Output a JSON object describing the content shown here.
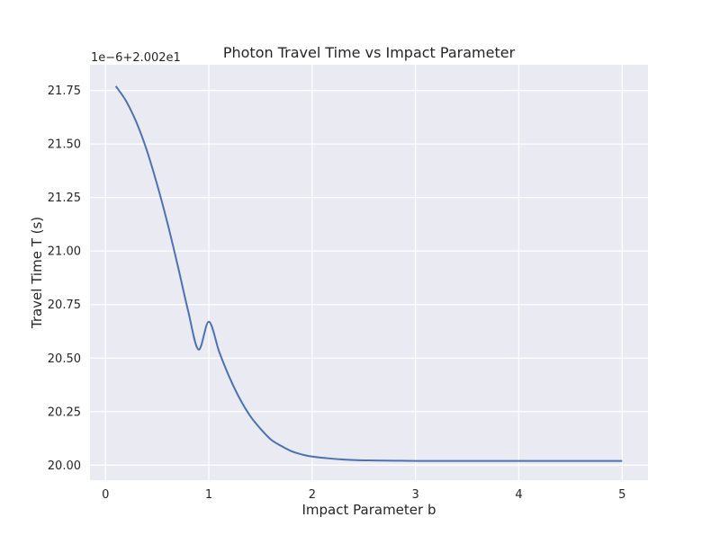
{
  "chart_data": {
    "type": "line",
    "title": "Photon Travel Time vs Impact Parameter",
    "xlabel": "Impact Parameter b",
    "ylabel": "Travel Time T (s)",
    "y_offset_label": "1e−6+2.002e1",
    "xlim": [
      -0.15,
      5.25
    ],
    "ylim": [
      19.93,
      21.87
    ],
    "x_ticks": [
      0,
      1,
      2,
      3,
      4,
      5
    ],
    "x_tick_labels": [
      "0",
      "1",
      "2",
      "3",
      "4",
      "5"
    ],
    "y_ticks": [
      20.0,
      20.25,
      20.5,
      20.75,
      21.0,
      21.25,
      21.5,
      21.75
    ],
    "y_tick_labels": [
      "20.00",
      "20.25",
      "20.50",
      "20.75",
      "21.00",
      "21.25",
      "21.50",
      "21.75"
    ],
    "grid": true,
    "background_color": "#eaeaf2",
    "grid_color": "#ffffff",
    "series": [
      {
        "color": "#4c72b0",
        "x": [
          0.1,
          0.2,
          0.3,
          0.4,
          0.5,
          0.6,
          0.7,
          0.8,
          0.9,
          1.0,
          1.1,
          1.2,
          1.3,
          1.4,
          1.5,
          1.6,
          1.7,
          1.8,
          1.9,
          2.0,
          2.2,
          2.4,
          2.6,
          2.8,
          3.0,
          3.5,
          4.0,
          4.5,
          5.0
        ],
        "y": [
          21.77,
          21.7,
          21.6,
          21.47,
          21.31,
          21.13,
          20.93,
          20.72,
          20.54,
          20.67,
          20.53,
          20.41,
          20.31,
          20.23,
          20.17,
          20.12,
          20.09,
          20.065,
          20.05,
          20.04,
          20.03,
          20.024,
          20.022,
          20.021,
          20.02,
          20.02,
          20.02,
          20.02,
          20.02
        ]
      }
    ]
  }
}
